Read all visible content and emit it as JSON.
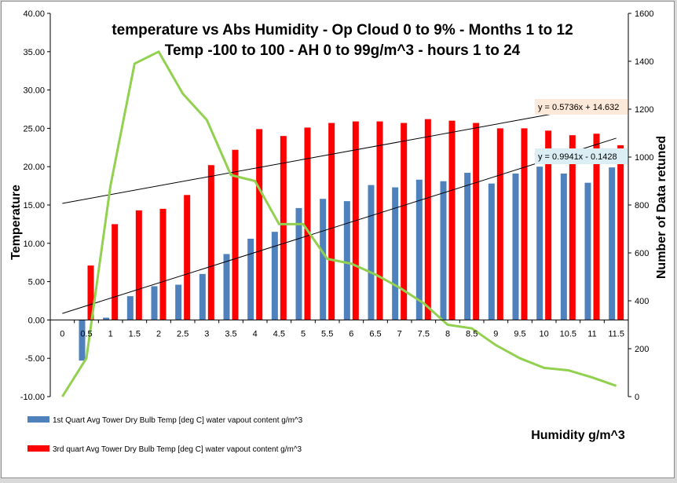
{
  "chart_data": {
    "type": "bar",
    "title_line1": "temperature vs Abs Humidity  - Op Cloud 0 to 9% - Months 1 to 12",
    "title_line2": "Temp -100 to 100 - AH 0 to 99g/m^3 - hours 1 to 24",
    "xlabel": "Humidity  g/m^3",
    "ylabel": "Temperature",
    "y2label": "Number of Data retuned",
    "ylim": [
      -10,
      40
    ],
    "y2lim": [
      0,
      1600
    ],
    "y_ticks": [
      "-10.00",
      "-5.00",
      "0.00",
      "5.00",
      "10.00",
      "15.00",
      "20.00",
      "25.00",
      "30.00",
      "35.00",
      "40.00"
    ],
    "y2_ticks": [
      "0",
      "200",
      "400",
      "600",
      "800",
      "1000",
      "1200",
      "1400",
      "1600"
    ],
    "categories": [
      "0",
      "0.5",
      "1",
      "1.5",
      "2",
      "2.5",
      "3",
      "3.5",
      "4",
      "4.5",
      "5",
      "5.5",
      "6",
      "6.5",
      "7",
      "7.5",
      "8",
      "8.5",
      "9",
      "9.5",
      "10",
      "10.5",
      "11",
      "11.5"
    ],
    "series": [
      {
        "name": "1st Quart Avg Tower Dry Bulb Temp [deg C] water vapout content g/m^3",
        "axis": "primary",
        "color": "#4f81bd",
        "values": [
          null,
          -5.3,
          0.3,
          3.1,
          4.4,
          4.6,
          6.0,
          8.6,
          10.6,
          11.5,
          14.6,
          15.8,
          15.5,
          17.6,
          17.3,
          18.3,
          18.1,
          19.2,
          17.8,
          19.1,
          20.0,
          19.1,
          17.9,
          19.9
        ]
      },
      {
        "name": "3rd quart Avg Tower Dry Bulb Temp [deg C] water vapout content g/m^3",
        "axis": "primary",
        "color": "#ff0000",
        "values": [
          null,
          7.1,
          12.5,
          14.3,
          14.5,
          16.3,
          20.2,
          22.2,
          24.9,
          24.0,
          25.1,
          25.7,
          25.9,
          25.9,
          25.7,
          26.2,
          26.0,
          25.7,
          25.0,
          25.0,
          24.7,
          24.1,
          24.3,
          22.8
        ]
      },
      {
        "name": "Number of Data retuned",
        "axis": "secondary",
        "type": "line",
        "color": "#92d050",
        "values": [
          0,
          160,
          880,
          1390,
          1440,
          1265,
          1155,
          925,
          900,
          720,
          720,
          575,
          555,
          510,
          455,
          390,
          300,
          285,
          215,
          160,
          120,
          110,
          80,
          45
        ]
      }
    ],
    "trendlines": [
      {
        "label": "y = 0.5736x + 14.632",
        "slope": 0.5736,
        "intercept": 14.632,
        "color": "#000000"
      },
      {
        "label": "y = 0.9941x - 0.1428",
        "slope": 0.9941,
        "intercept": -0.1428,
        "color": "#000000"
      }
    ],
    "legend_position": "bottom-left"
  }
}
